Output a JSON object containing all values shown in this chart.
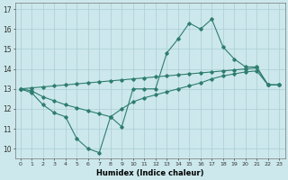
{
  "xlabel": "Humidex (Indice chaleur)",
  "ylabel": "",
  "bg_color": "#cce8ec",
  "line_color": "#2e7d6e",
  "x": [
    0,
    1,
    2,
    3,
    4,
    5,
    6,
    7,
    8,
    9,
    10,
    11,
    12,
    13,
    14,
    15,
    16,
    17,
    18,
    19,
    20,
    21,
    22,
    23
  ],
  "line1": [
    13.0,
    12.8,
    12.2,
    11.8,
    11.6,
    10.5,
    10.0,
    9.8,
    11.6,
    11.1,
    13.0,
    13.0,
    13.0,
    14.8,
    15.5,
    16.3,
    16.0,
    16.5,
    15.1,
    14.5,
    14.1,
    14.1,
    13.2,
    13.2
  ],
  "line2": [
    13.0,
    12.9,
    12.6,
    12.4,
    12.2,
    12.05,
    11.9,
    11.75,
    11.6,
    12.0,
    12.35,
    12.55,
    12.7,
    12.85,
    13.0,
    13.15,
    13.3,
    13.5,
    13.65,
    13.75,
    13.85,
    13.9,
    13.2,
    13.2
  ],
  "line3": [
    13.0,
    13.05,
    13.1,
    13.15,
    13.2,
    13.25,
    13.3,
    13.35,
    13.4,
    13.45,
    13.5,
    13.55,
    13.6,
    13.65,
    13.7,
    13.75,
    13.8,
    13.85,
    13.9,
    13.95,
    14.0,
    14.05,
    13.2,
    13.2
  ],
  "ylim": [
    9.5,
    17.3
  ],
  "yticks": [
    10,
    11,
    12,
    13,
    14,
    15,
    16,
    17
  ],
  "xticks": [
    0,
    1,
    2,
    3,
    4,
    5,
    6,
    7,
    8,
    9,
    10,
    11,
    12,
    13,
    14,
    15,
    16,
    17,
    18,
    19,
    20,
    21,
    22,
    23
  ],
  "grid_color": "#aacdd4"
}
